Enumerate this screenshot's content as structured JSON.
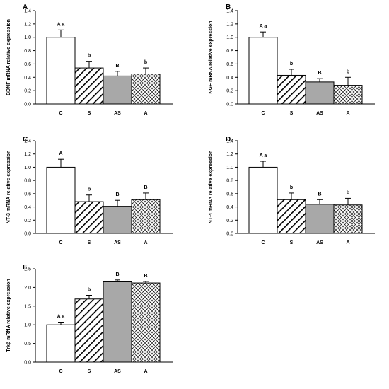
{
  "chart_data": [
    {
      "type": "bar",
      "panel": "A",
      "ylabel": "BDNF mRNA relative expression",
      "categories": [
        "C",
        "S",
        "AS",
        "A"
      ],
      "values": [
        1.0,
        0.54,
        0.42,
        0.45
      ],
      "errors": [
        0.11,
        0.1,
        0.07,
        0.09
      ],
      "labels": [
        "A a",
        "b",
        "B",
        "b"
      ],
      "ylim": [
        0,
        1.4
      ],
      "yticks": [
        "0.0",
        "0.2",
        "0.4",
        "0.6",
        "0.8",
        "1.0",
        "1.2",
        "1.4"
      ]
    },
    {
      "type": "bar",
      "panel": "B",
      "ylabel": "NGF mRNA relative expression",
      "categories": [
        "C",
        "S",
        "AS",
        "A"
      ],
      "values": [
        1.0,
        0.43,
        0.33,
        0.28
      ],
      "errors": [
        0.08,
        0.09,
        0.05,
        0.12
      ],
      "labels": [
        "A a",
        "b",
        "B",
        "b"
      ],
      "ylim": [
        0,
        1.4
      ],
      "yticks": [
        "0.0",
        "0.2",
        "0.4",
        "0.6",
        "0.8",
        "1.0",
        "1.2",
        "1.4"
      ]
    },
    {
      "type": "bar",
      "panel": "C",
      "ylabel": "NT-3 mRNA relative expression",
      "categories": [
        "C",
        "S",
        "AS",
        "A"
      ],
      "values": [
        1.0,
        0.48,
        0.41,
        0.51
      ],
      "errors": [
        0.12,
        0.1,
        0.09,
        0.1
      ],
      "labels": [
        "A",
        "b",
        "B",
        "B"
      ],
      "ylim": [
        0,
        1.4
      ],
      "yticks": [
        "0.0",
        "0.2",
        "0.4",
        "0.6",
        "0.8",
        "1.0",
        "1.2",
        "1.4"
      ]
    },
    {
      "type": "bar",
      "panel": "D",
      "ylabel": "NT-4 mRNA relative expression",
      "categories": [
        "C",
        "S",
        "AS",
        "A"
      ],
      "values": [
        1.0,
        0.51,
        0.44,
        0.43
      ],
      "errors": [
        0.09,
        0.1,
        0.07,
        0.1
      ],
      "labels": [
        "A a",
        "b",
        "B",
        "b"
      ],
      "ylim": [
        0,
        1.4
      ],
      "yticks": [
        "0.0",
        "0.2",
        "0.4",
        "0.6",
        "0.8",
        "1.0",
        "1.2",
        "1.4"
      ]
    },
    {
      "type": "bar",
      "panel": "E",
      "ylabel": "Trkβ mRNA relative expression",
      "categories": [
        "C",
        "S",
        "AS",
        "A"
      ],
      "values": [
        1.0,
        1.69,
        2.15,
        2.12
      ],
      "errors": [
        0.07,
        0.1,
        0.05,
        0.04
      ],
      "labels": [
        "A a",
        "b",
        "B",
        "B"
      ],
      "ylim": [
        0,
        2.5
      ],
      "yticks": [
        "0.0",
        "0.5",
        "1.0",
        "1.5",
        "2.0",
        "2.5"
      ]
    }
  ]
}
